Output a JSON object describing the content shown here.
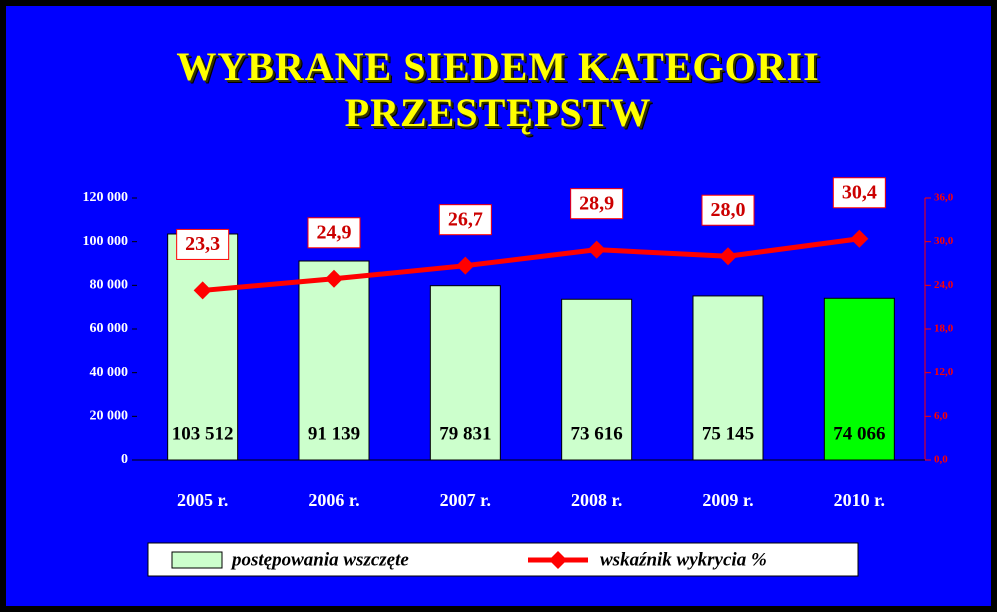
{
  "chart_data": {
    "type": "bar",
    "title": "WYBRANE SIEDEM KATEGORII PRZESTĘPSTW",
    "categories": [
      "2005 r.",
      "2006 r.",
      "2007 r.",
      "2008 r.",
      "2009 r.",
      "2010 r."
    ],
    "series": [
      {
        "name": "postępowania wszczęte",
        "type": "bar",
        "color": "#ccffcc",
        "colors": [
          "#ccffcc",
          "#ccffcc",
          "#ccffcc",
          "#ccffcc",
          "#ccffcc",
          "#00ff00"
        ],
        "values": [
          103512,
          91139,
          79831,
          73616,
          75145,
          74066
        ],
        "value_labels": [
          "103 512",
          "91 139",
          "79 831",
          "73 616",
          "75 145",
          "74 066"
        ]
      },
      {
        "name": "wskaźnik wykrycia %",
        "type": "line",
        "axis": "y2",
        "color": "#ff0000",
        "values": [
          23.3,
          24.9,
          26.7,
          28.9,
          28.0,
          30.4
        ],
        "value_labels": [
          "23,3",
          "24,9",
          "26,7",
          "28,9",
          "28,0",
          "30,4"
        ]
      }
    ],
    "ylim": [
      0,
      120000
    ],
    "yticks": [
      0,
      {
        "value": 20000,
        "label": "20 000"
      },
      {
        "value": 40000,
        "label": "40 000"
      },
      {
        "value": 60000,
        "label": "60 000"
      },
      {
        "value": 80000,
        "label": "80 000"
      },
      {
        "value": 100000,
        "label": "100 000"
      },
      {
        "value": 120000,
        "label": "120 000"
      }
    ],
    "y2lim": [
      0,
      36
    ],
    "y2ticks": [
      {
        "value": 0,
        "label": "0,0"
      },
      {
        "value": 6,
        "label": "6,0"
      },
      {
        "value": 12,
        "label": "12,0"
      },
      {
        "value": 18,
        "label": "18,0"
      },
      {
        "value": 24,
        "label": "24,0"
      },
      {
        "value": 30,
        "label": "30,0"
      },
      {
        "value": 36,
        "label": "36,0"
      }
    ]
  }
}
